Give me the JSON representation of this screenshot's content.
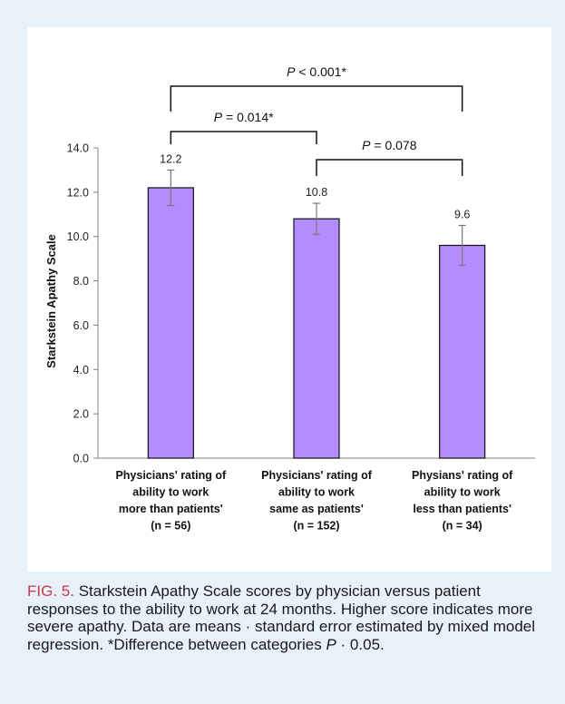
{
  "chart_data": {
    "type": "bar",
    "categories": [
      [
        "Physicians' rating of",
        "ability to work",
        "more than patients'",
        "(n = 56)"
      ],
      [
        "Physicians' rating of",
        "ability to work",
        "same as patients'",
        "(n = 152)"
      ],
      [
        "Physians' rating of",
        "ability to work",
        "less than patients'",
        "(n = 34)"
      ]
    ],
    "values": [
      12.2,
      10.8,
      9.6
    ],
    "value_labels": [
      "12.2",
      "10.8",
      "9.6"
    ],
    "error_low": [
      11.4,
      10.1,
      8.7
    ],
    "error_high": [
      13.0,
      11.5,
      10.5
    ],
    "ylabel": "Starkstein Apathy Scale",
    "ylim": [
      0,
      14
    ],
    "yticks": [
      "0.0",
      "2.0",
      "4.0",
      "6.0",
      "8.0",
      "10.0",
      "12.0",
      "14.0"
    ],
    "bar_color": "#b48cff",
    "significance": [
      {
        "italic": "P",
        "text": " < 0.001*",
        "from": 0,
        "to": 2
      },
      {
        "italic": "P",
        "text": " = 0.014*",
        "from": 0,
        "to": 1
      },
      {
        "italic": "P",
        "text": " = 0.078",
        "from": 1,
        "to": 2
      }
    ]
  },
  "caption": {
    "label": "FIG. 5.",
    "text_1": " Starkstein Apathy Scale scores by physician versus patient responses to the ability to work at 24 months. Higher score indicates more severe apathy. Data are means · standard error estimated by mixed model regression. *Difference between categories ",
    "italic_p": "P",
    "text_2": " · 0.05."
  },
  "colors": {
    "panel_bg": "#e8f0fa",
    "card_bg": "#ffffff",
    "caption_label": "#c8384a"
  }
}
